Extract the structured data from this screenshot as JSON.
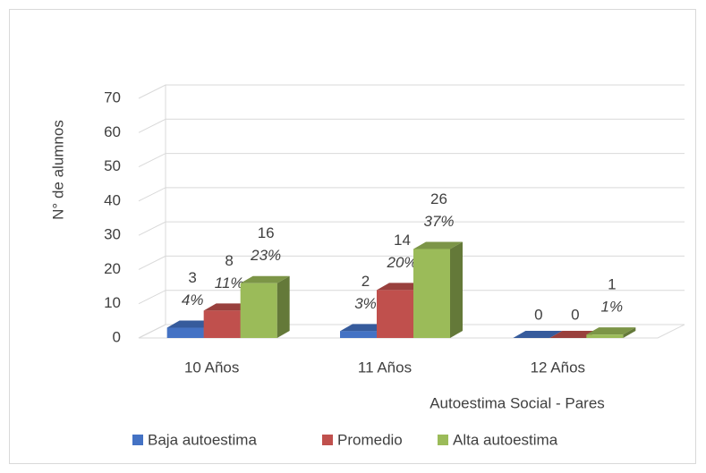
{
  "chart_data": {
    "type": "bar3d",
    "y_axis_label": "N° de alumnos",
    "x_axis_label": "Autoestima Social - Pares",
    "categories": [
      "10 Años",
      "11 Años",
      "12 Años"
    ],
    "series": [
      {
        "name": "Baja autoestima",
        "color": "#4472c4",
        "values": [
          3,
          2,
          0
        ],
        "percent_labels": [
          "4%",
          "3%",
          null
        ]
      },
      {
        "name": "Promedio",
        "color": "#c0504d",
        "values": [
          8,
          14,
          0
        ],
        "percent_labels": [
          "11%",
          "20%",
          null
        ]
      },
      {
        "name": "Alta autoestima",
        "color": "#9bbb59",
        "values": [
          16,
          26,
          1
        ],
        "percent_labels": [
          "23%",
          "37%",
          "1%"
        ]
      }
    ],
    "ylim": [
      0,
      70
    ],
    "yticks": [
      0,
      10,
      20,
      30,
      40,
      50,
      60,
      70
    ],
    "grid": true,
    "legend": "bottom"
  }
}
